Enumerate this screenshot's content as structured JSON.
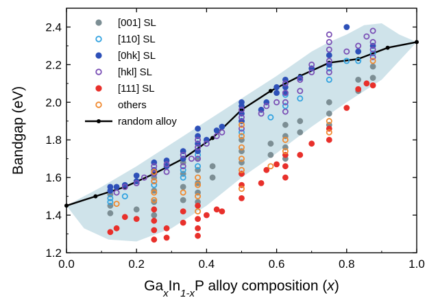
{
  "chart_data": {
    "type": "scatter",
    "title": "",
    "xlabel": {
      "parts": [
        {
          "t": "Ga",
          "style": "normal"
        },
        {
          "t": "x",
          "style": "sub"
        },
        {
          "t": "In",
          "style": "normal"
        },
        {
          "t": "1-x",
          "style": "sub"
        },
        {
          "t": "P alloy composition (",
          "style": "normal"
        },
        {
          "t": "x",
          "style": "italic"
        },
        {
          "t": ")",
          "style": "normal"
        }
      ]
    },
    "ylabel": "Bandgap (eV)",
    "xlim": [
      0.0,
      1.0
    ],
    "ylim": [
      1.2,
      2.5
    ],
    "xticks": [
      "0.0",
      "0.2",
      "0.4",
      "0.6",
      "0.8",
      "1.0"
    ],
    "yticks": [
      "1.2",
      "1.4",
      "1.6",
      "1.8",
      "2.0",
      "2.2",
      "2.4"
    ],
    "grid": false,
    "legend_position": "top-left",
    "band": {
      "color": "#cfe3ea",
      "upper": [
        [
          0.0,
          1.45
        ],
        [
          0.1,
          1.55
        ],
        [
          0.2,
          1.66
        ],
        [
          0.3,
          1.78
        ],
        [
          0.4,
          1.9
        ],
        [
          0.5,
          2.02
        ],
        [
          0.6,
          2.14
        ],
        [
          0.7,
          2.27
        ],
        [
          0.75,
          2.32
        ],
        [
          0.8,
          2.36
        ],
        [
          0.85,
          2.41
        ],
        [
          0.9,
          2.42
        ],
        [
          0.95,
          2.36
        ],
        [
          1.0,
          2.32
        ]
      ],
      "lower": [
        [
          1.0,
          2.32
        ],
        [
          0.95,
          2.22
        ],
        [
          0.9,
          2.12
        ],
        [
          0.8,
          2.0
        ],
        [
          0.7,
          1.87
        ],
        [
          0.6,
          1.73
        ],
        [
          0.5,
          1.6
        ],
        [
          0.4,
          1.45
        ],
        [
          0.3,
          1.33
        ],
        [
          0.2,
          1.26
        ],
        [
          0.12,
          1.27
        ],
        [
          0.05,
          1.33
        ],
        [
          0.0,
          1.45
        ]
      ]
    },
    "series": [
      {
        "name": "[001] SL",
        "marker": "filled",
        "color": "#7c8e94",
        "points": [
          [
            0.125,
            1.41
          ],
          [
            0.125,
            1.45
          ],
          [
            0.125,
            1.51
          ],
          [
            0.2,
            1.43
          ],
          [
            0.25,
            1.4
          ],
          [
            0.25,
            1.47
          ],
          [
            0.25,
            1.53
          ],
          [
            0.25,
            1.6
          ],
          [
            0.333,
            1.48
          ],
          [
            0.333,
            1.55
          ],
          [
            0.333,
            1.62
          ],
          [
            0.333,
            1.68
          ],
          [
            0.375,
            1.47
          ],
          [
            0.375,
            1.52
          ],
          [
            0.375,
            1.57
          ],
          [
            0.375,
            1.64
          ],
          [
            0.375,
            1.7
          ],
          [
            0.417,
            1.6
          ],
          [
            0.417,
            1.66
          ],
          [
            0.5,
            1.62
          ],
          [
            0.5,
            1.68
          ],
          [
            0.5,
            1.74
          ],
          [
            0.5,
            1.8
          ],
          [
            0.583,
            1.72
          ],
          [
            0.583,
            1.78
          ],
          [
            0.625,
            1.7
          ],
          [
            0.625,
            1.76
          ],
          [
            0.625,
            1.82
          ],
          [
            0.625,
            1.88
          ],
          [
            0.667,
            1.84
          ],
          [
            0.667,
            1.9
          ],
          [
            0.75,
            1.88
          ],
          [
            0.75,
            1.94
          ],
          [
            0.75,
            2.0
          ],
          [
            0.833,
            2.06
          ],
          [
            0.833,
            2.12
          ],
          [
            0.875,
            2.13
          ],
          [
            0.875,
            2.19
          ]
        ]
      },
      {
        "name": "[110] SL",
        "marker": "open",
        "color": "#33a3e0",
        "points": [
          [
            0.125,
            1.47
          ],
          [
            0.125,
            1.49
          ],
          [
            0.167,
            1.5
          ],
          [
            0.25,
            1.56
          ],
          [
            0.25,
            1.62
          ],
          [
            0.333,
            1.6
          ],
          [
            0.333,
            1.64
          ],
          [
            0.375,
            1.66
          ],
          [
            0.375,
            1.72
          ],
          [
            0.5,
            1.84
          ],
          [
            0.5,
            1.9
          ],
          [
            0.583,
            1.92
          ],
          [
            0.625,
            1.98
          ],
          [
            0.625,
            2.04
          ],
          [
            0.667,
            2.02
          ],
          [
            0.75,
            2.12
          ],
          [
            0.75,
            2.18
          ],
          [
            0.8,
            2.22
          ],
          [
            0.833,
            2.22
          ],
          [
            0.875,
            2.26
          ]
        ]
      },
      {
        "name": "[0hk] SL",
        "marker": "filled",
        "color": "#2d50b8",
        "points": [
          [
            0.125,
            1.53
          ],
          [
            0.125,
            1.55
          ],
          [
            0.143,
            1.55
          ],
          [
            0.167,
            1.56
          ],
          [
            0.2,
            1.58
          ],
          [
            0.2,
            1.61
          ],
          [
            0.25,
            1.64
          ],
          [
            0.25,
            1.68
          ],
          [
            0.286,
            1.66
          ],
          [
            0.286,
            1.69
          ],
          [
            0.333,
            1.7
          ],
          [
            0.333,
            1.74
          ],
          [
            0.375,
            1.74
          ],
          [
            0.375,
            1.78
          ],
          [
            0.375,
            1.82
          ],
          [
            0.375,
            1.86
          ],
          [
            0.4,
            1.8
          ],
          [
            0.429,
            1.85
          ],
          [
            0.444,
            1.87
          ],
          [
            0.5,
            1.9
          ],
          [
            0.5,
            1.94
          ],
          [
            0.5,
            1.98
          ],
          [
            0.5,
            2.0
          ],
          [
            0.556,
            1.96
          ],
          [
            0.571,
            2.0
          ],
          [
            0.6,
            2.05
          ],
          [
            0.6,
            2.08
          ],
          [
            0.625,
            2.05
          ],
          [
            0.625,
            2.08
          ],
          [
            0.625,
            2.12
          ],
          [
            0.667,
            2.13
          ],
          [
            0.7,
            2.18
          ],
          [
            0.75,
            2.2
          ],
          [
            0.75,
            2.25
          ],
          [
            0.8,
            2.4
          ],
          [
            0.833,
            2.27
          ],
          [
            0.875,
            2.3
          ]
        ]
      },
      {
        "name": "[hkl] SL",
        "marker": "open",
        "color": "#7a4fb5",
        "points": [
          [
            0.143,
            1.52
          ],
          [
            0.167,
            1.55
          ],
          [
            0.2,
            1.57
          ],
          [
            0.222,
            1.6
          ],
          [
            0.25,
            1.58
          ],
          [
            0.25,
            1.62
          ],
          [
            0.25,
            1.66
          ],
          [
            0.286,
            1.63
          ],
          [
            0.286,
            1.67
          ],
          [
            0.333,
            1.66
          ],
          [
            0.333,
            1.72
          ],
          [
            0.357,
            1.7
          ],
          [
            0.375,
            1.7
          ],
          [
            0.375,
            1.76
          ],
          [
            0.375,
            1.8
          ],
          [
            0.4,
            1.78
          ],
          [
            0.429,
            1.82
          ],
          [
            0.444,
            1.84
          ],
          [
            0.5,
            1.86
          ],
          [
            0.5,
            1.92
          ],
          [
            0.5,
            1.96
          ],
          [
            0.556,
            1.94
          ],
          [
            0.571,
            1.98
          ],
          [
            0.6,
            2.0
          ],
          [
            0.625,
            1.95
          ],
          [
            0.625,
            2.0
          ],
          [
            0.625,
            2.05
          ],
          [
            0.625,
            2.1
          ],
          [
            0.667,
            2.06
          ],
          [
            0.667,
            2.12
          ],
          [
            0.7,
            2.16
          ],
          [
            0.7,
            2.2
          ],
          [
            0.75,
            2.16
          ],
          [
            0.75,
            2.22
          ],
          [
            0.75,
            2.28
          ],
          [
            0.75,
            2.32
          ],
          [
            0.75,
            2.36
          ],
          [
            0.8,
            2.27
          ],
          [
            0.833,
            2.3
          ],
          [
            0.857,
            2.35
          ],
          [
            0.875,
            2.24
          ],
          [
            0.875,
            2.28
          ],
          [
            0.875,
            2.32
          ],
          [
            0.875,
            2.38
          ]
        ]
      },
      {
        "name": "[111] SL",
        "marker": "filled",
        "color": "#e8302b",
        "points": [
          [
            0.125,
            1.31
          ],
          [
            0.143,
            1.33
          ],
          [
            0.167,
            1.39
          ],
          [
            0.2,
            1.38
          ],
          [
            0.25,
            1.27
          ],
          [
            0.25,
            1.32
          ],
          [
            0.25,
            1.37
          ],
          [
            0.25,
            1.43
          ],
          [
            0.286,
            1.28
          ],
          [
            0.286,
            1.33
          ],
          [
            0.333,
            1.36
          ],
          [
            0.333,
            1.42
          ],
          [
            0.375,
            1.29
          ],
          [
            0.375,
            1.33
          ],
          [
            0.375,
            1.38
          ],
          [
            0.375,
            1.45
          ],
          [
            0.4,
            1.4
          ],
          [
            0.429,
            1.43
          ],
          [
            0.444,
            1.42
          ],
          [
            0.5,
            1.49
          ],
          [
            0.5,
            1.56
          ],
          [
            0.5,
            1.62
          ],
          [
            0.556,
            1.57
          ],
          [
            0.571,
            1.64
          ],
          [
            0.6,
            1.67
          ],
          [
            0.625,
            1.6
          ],
          [
            0.625,
            1.66
          ],
          [
            0.625,
            1.72
          ],
          [
            0.667,
            1.72
          ],
          [
            0.7,
            1.78
          ],
          [
            0.75,
            1.8
          ],
          [
            0.75,
            1.86
          ],
          [
            0.8,
            1.97
          ],
          [
            0.833,
            2.07
          ],
          [
            0.857,
            2.1
          ],
          [
            0.875,
            2.09
          ]
        ]
      },
      {
        "name": "others",
        "marker": "open",
        "color": "#f08a30",
        "points": [
          [
            0.143,
            1.46
          ],
          [
            0.25,
            1.48
          ],
          [
            0.25,
            1.52
          ],
          [
            0.25,
            1.58
          ],
          [
            0.25,
            1.63
          ],
          [
            0.333,
            1.52
          ],
          [
            0.375,
            1.42
          ],
          [
            0.375,
            1.5
          ],
          [
            0.375,
            1.56
          ],
          [
            0.375,
            1.6
          ],
          [
            0.5,
            1.54
          ],
          [
            0.5,
            1.64
          ],
          [
            0.5,
            1.7
          ],
          [
            0.5,
            1.76
          ],
          [
            0.5,
            1.82
          ],
          [
            0.5,
            1.88
          ],
          [
            0.583,
            1.66
          ],
          [
            0.625,
            1.74
          ],
          [
            0.625,
            1.8
          ],
          [
            0.75,
            1.84
          ],
          [
            0.75,
            1.9
          ],
          [
            0.875,
            2.22
          ]
        ]
      }
    ],
    "line": {
      "name": "random alloy",
      "color": "#000000",
      "points": [
        [
          0.0,
          1.45
        ],
        [
          0.083,
          1.5
        ],
        [
          0.167,
          1.55
        ],
        [
          0.25,
          1.62
        ],
        [
          0.333,
          1.7
        ],
        [
          0.417,
          1.81
        ],
        [
          0.5,
          1.96
        ],
        [
          0.583,
          2.06
        ],
        [
          0.667,
          2.14
        ],
        [
          0.75,
          2.21
        ],
        [
          0.833,
          2.23
        ],
        [
          0.917,
          2.29
        ],
        [
          1.0,
          2.32
        ]
      ]
    }
  }
}
